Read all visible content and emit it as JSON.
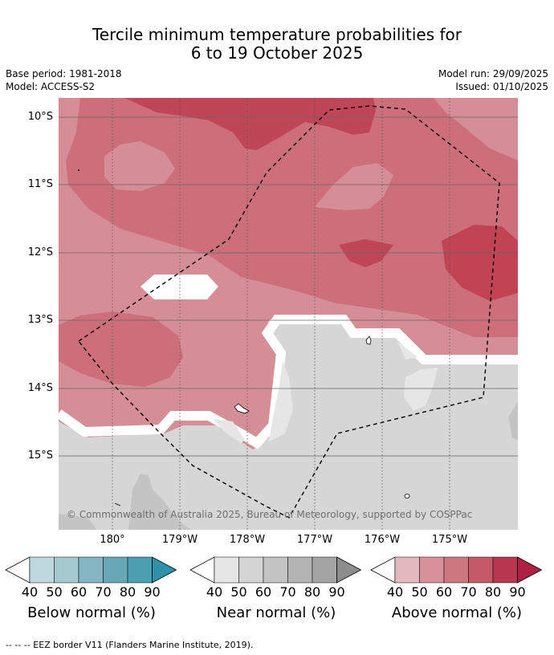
{
  "title_line1": "Tercile minimum temperature probabilities for",
  "title_line2": "6 to 19 October 2025",
  "meta": {
    "base_period": "Base period: 1981-2018",
    "model": "Model: ACCESS-S2",
    "model_run": "Model run: 29/09/2025",
    "issued": "Issued: 01/10/2025"
  },
  "map": {
    "lat_labels": [
      "10°S",
      "11°S",
      "12°S",
      "13°S",
      "14°S",
      "15°S"
    ],
    "lon_labels": [
      "180°",
      "179°W",
      "178°W",
      "177°W",
      "176°W",
      "175°W"
    ],
    "copyright": "© Commonwealth of Australia 2025, Bureau of Meteorology, supported by COSPPac",
    "colors": {
      "above_50": "#d58d96",
      "above_60": "#cc6f7b",
      "above_70": "#c85f6c",
      "above_80": "#bb3f51",
      "near_50": "#d6d6d6",
      "near_40": "#e6e6e6",
      "near_70": "#c0c0c0"
    }
  },
  "legends": [
    {
      "label": "Below normal (%)",
      "ticks": [
        "40",
        "50",
        "60",
        "70",
        "80",
        "90"
      ],
      "colors": [
        "#ffffff",
        "#bfd8df",
        "#a6c9cf",
        "#86b6c3",
        "#68a8b6",
        "#4a9fb0",
        "#2e93a8"
      ]
    },
    {
      "label": "Near normal (%)",
      "ticks": [
        "40",
        "50",
        "60",
        "70",
        "80",
        "90"
      ],
      "colors": [
        "#ffffff",
        "#e6e6e6",
        "#d4d4d4",
        "#c4c4c4",
        "#b4b4b4",
        "#a4a4a4",
        "#8c8c8c"
      ]
    },
    {
      "label": "Above normal (%)",
      "ticks": [
        "40",
        "50",
        "60",
        "70",
        "80",
        "90"
      ],
      "colors": [
        "#ffffff",
        "#e3b8be",
        "#d79199",
        "#cd7781",
        "#c45a69",
        "#b83650",
        "#ae2143"
      ]
    }
  ],
  "footnote": "--  --  -- EEZ border V11 (Flanders Marine Institute, 2019)."
}
